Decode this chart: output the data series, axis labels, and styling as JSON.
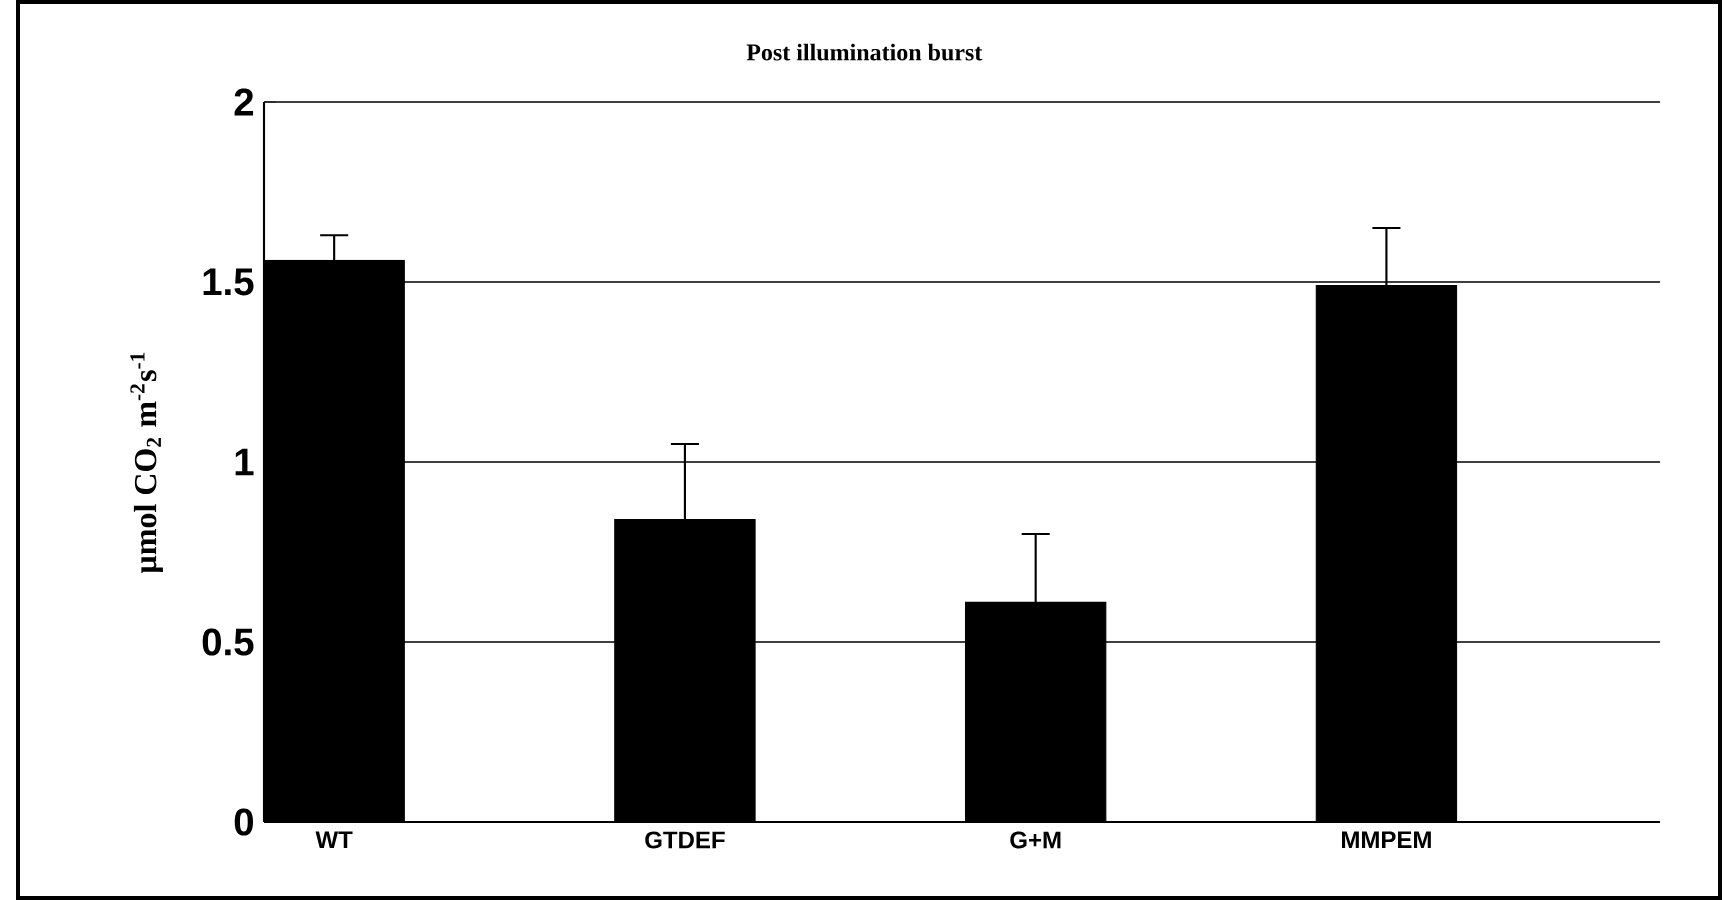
{
  "chart_data": {
    "type": "bar",
    "title": "Post illumination burst",
    "ylabel": "µmol CO$_{2}$ m$^{-2}$s$^{-1}$",
    "categories": [
      "WT",
      "GTDEF",
      "G+M",
      "MMPEM"
    ],
    "values": [
      1.56,
      0.84,
      0.61,
      1.49
    ],
    "errors": [
      0.07,
      0.21,
      0.19,
      0.16
    ],
    "color": "#000000",
    "ylim": [
      0,
      2
    ],
    "yticks": [
      0,
      0.5,
      1,
      1.5,
      2
    ],
    "grid": "y"
  }
}
